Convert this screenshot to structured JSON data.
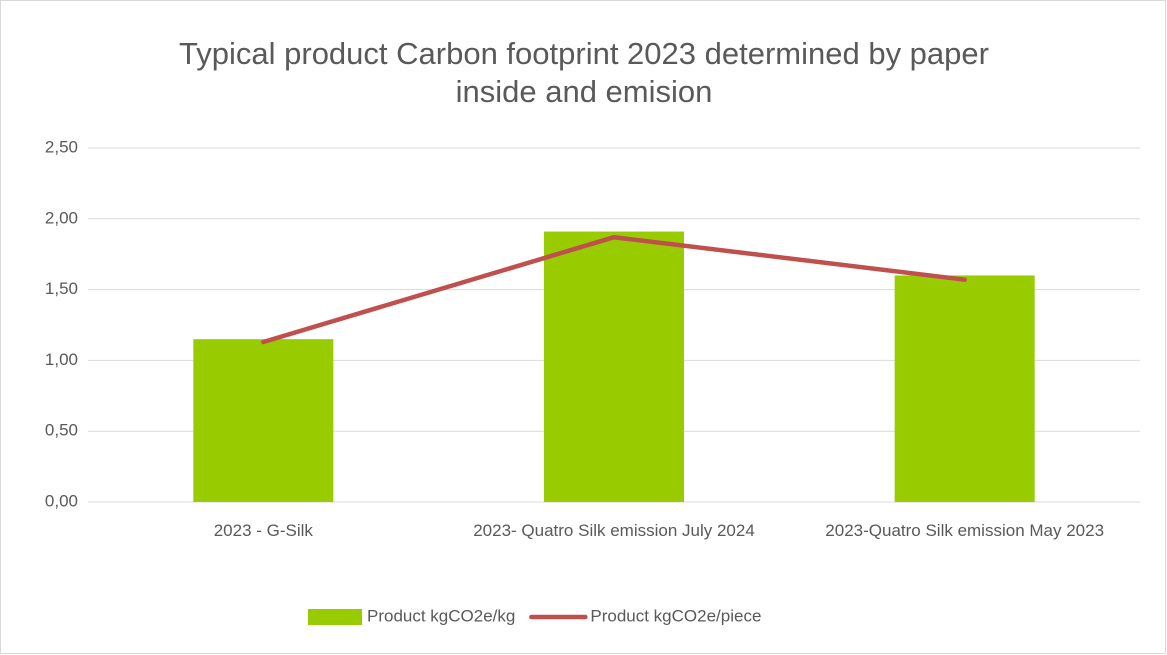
{
  "chart_data": {
    "type": "bar_line",
    "title": "Typical product Carbon footprint 2023 determined by paper inside and emision",
    "categories": [
      "2023 - G-Silk",
      "2023- Quatro Silk emission July 2024",
      "2023-Quatro Silk emission May 2023"
    ],
    "series": [
      {
        "name": "Product kgCO2e/kg",
        "type": "bar",
        "color": "#99cc00",
        "values": [
          1.15,
          1.91,
          1.6
        ]
      },
      {
        "name": "Product kgCO2e/piece",
        "type": "line",
        "color": "#c0504d",
        "values": [
          1.13,
          1.87,
          1.57
        ]
      }
    ],
    "ylim": [
      0,
      2.5
    ],
    "yticks": [
      {
        "value": 0,
        "label": "0,00"
      },
      {
        "value": 0.5,
        "label": "0,50"
      },
      {
        "value": 1,
        "label": "1,00"
      },
      {
        "value": 1.5,
        "label": "1,50"
      },
      {
        "value": 2,
        "label": "2,00"
      },
      {
        "value": 2.5,
        "label": "2,50"
      }
    ],
    "grid": true,
    "legend": "bottom"
  }
}
